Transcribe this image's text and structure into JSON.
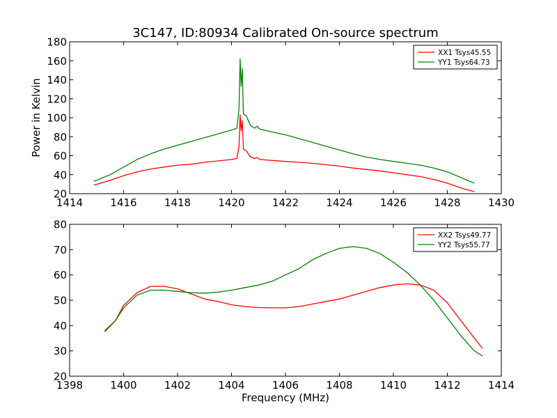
{
  "figure": {
    "title": "3C147, ID:80934 Calibrated On-source spectrum",
    "xlabel": "Frequency (MHz)",
    "ylabel": "Power in Kelvin"
  },
  "chart_data": [
    {
      "type": "line",
      "xlim": [
        1414,
        1430
      ],
      "ylim": [
        20,
        180
      ],
      "xticks": [
        1414,
        1416,
        1418,
        1420,
        1422,
        1424,
        1426,
        1428,
        1430
      ],
      "yticks": [
        20,
        40,
        60,
        80,
        100,
        120,
        140,
        160,
        180
      ],
      "ylabel": "Power in Kelvin",
      "grid": false,
      "legend_position": "top-right",
      "series": [
        {
          "name": "XX1 Tsys45.55",
          "color": "#ff0000",
          "points": [
            [
              1414.9,
              29
            ],
            [
              1415.5,
              34
            ],
            [
              1416.0,
              39
            ],
            [
              1416.5,
              43
            ],
            [
              1417.0,
              46
            ],
            [
              1417.5,
              48
            ],
            [
              1418.0,
              50
            ],
            [
              1418.5,
              51
            ],
            [
              1419.0,
              53
            ],
            [
              1419.5,
              54.5
            ],
            [
              1420.0,
              56
            ],
            [
              1420.2,
              57
            ],
            [
              1420.28,
              70
            ],
            [
              1420.32,
              103
            ],
            [
              1420.36,
              86
            ],
            [
              1420.4,
              97
            ],
            [
              1420.44,
              67
            ],
            [
              1420.55,
              65
            ],
            [
              1420.7,
              59
            ],
            [
              1420.85,
              57
            ],
            [
              1420.95,
              58
            ],
            [
              1421.05,
              56
            ],
            [
              1421.5,
              55
            ],
            [
              1422.0,
              54
            ],
            [
              1422.5,
              53
            ],
            [
              1423.0,
              52
            ],
            [
              1423.5,
              50.5
            ],
            [
              1424.0,
              49
            ],
            [
              1424.5,
              47
            ],
            [
              1425.0,
              45.5
            ],
            [
              1425.5,
              44
            ],
            [
              1426.0,
              42
            ],
            [
              1426.5,
              40
            ],
            [
              1427.0,
              38
            ],
            [
              1427.5,
              35
            ],
            [
              1428.0,
              31
            ],
            [
              1428.5,
              26
            ],
            [
              1429.0,
              22
            ]
          ]
        },
        {
          "name": "YY1 Tsys64.73",
          "color": "#008000",
          "points": [
            [
              1414.9,
              33
            ],
            [
              1415.5,
              40
            ],
            [
              1416.0,
              48
            ],
            [
              1416.5,
              56
            ],
            [
              1417.0,
              62
            ],
            [
              1417.5,
              67
            ],
            [
              1418.0,
              71
            ],
            [
              1418.5,
              75
            ],
            [
              1419.0,
              79
            ],
            [
              1419.5,
              83
            ],
            [
              1420.0,
              87
            ],
            [
              1420.2,
              89
            ],
            [
              1420.28,
              110
            ],
            [
              1420.32,
              162
            ],
            [
              1420.36,
              133
            ],
            [
              1420.4,
              152
            ],
            [
              1420.44,
              104
            ],
            [
              1420.55,
              102
            ],
            [
              1420.7,
              92
            ],
            [
              1420.85,
              89
            ],
            [
              1420.95,
              91
            ],
            [
              1421.05,
              88
            ],
            [
              1421.5,
              85
            ],
            [
              1422.0,
              82
            ],
            [
              1422.5,
              78
            ],
            [
              1423.0,
              74
            ],
            [
              1423.5,
              70
            ],
            [
              1424.0,
              66
            ],
            [
              1424.5,
              62
            ],
            [
              1425.0,
              58.5
            ],
            [
              1425.5,
              56
            ],
            [
              1426.0,
              54
            ],
            [
              1426.5,
              52
            ],
            [
              1427.0,
              50
            ],
            [
              1427.5,
              47
            ],
            [
              1428.0,
              43
            ],
            [
              1428.5,
              37
            ],
            [
              1429.0,
              31
            ]
          ]
        }
      ]
    },
    {
      "type": "line",
      "xlim": [
        1398,
        1414
      ],
      "ylim": [
        20,
        80
      ],
      "xticks": [
        1398,
        1400,
        1402,
        1404,
        1406,
        1408,
        1410,
        1412,
        1414
      ],
      "yticks": [
        20,
        30,
        40,
        50,
        60,
        70,
        80
      ],
      "xlabel": "Frequency (MHz)",
      "grid": false,
      "legend_position": "top-right",
      "series": [
        {
          "name": "XX2 Tsys49.77",
          "color": "#ff0000",
          "points": [
            [
              1399.3,
              38
            ],
            [
              1399.7,
              42
            ],
            [
              1400.0,
              48
            ],
            [
              1400.5,
              53
            ],
            [
              1401.0,
              55.5
            ],
            [
              1401.5,
              55.5
            ],
            [
              1402.0,
              54.5
            ],
            [
              1402.5,
              52.5
            ],
            [
              1403.0,
              50.5
            ],
            [
              1403.5,
              49.5
            ],
            [
              1404.0,
              48.2
            ],
            [
              1404.5,
              47.5
            ],
            [
              1405.0,
              47.1
            ],
            [
              1405.5,
              47
            ],
            [
              1406.0,
              47
            ],
            [
              1406.5,
              47.5
            ],
            [
              1407.0,
              48.5
            ],
            [
              1407.5,
              49.5
            ],
            [
              1408.0,
              50.5
            ],
            [
              1408.5,
              52
            ],
            [
              1409.0,
              53.5
            ],
            [
              1409.5,
              55
            ],
            [
              1410.0,
              56
            ],
            [
              1410.5,
              56.5
            ],
            [
              1411.0,
              56
            ],
            [
              1411.5,
              54
            ],
            [
              1412.0,
              49
            ],
            [
              1412.5,
              42
            ],
            [
              1413.0,
              35
            ],
            [
              1413.3,
              31
            ]
          ]
        },
        {
          "name": "YY2 Tsys55.77",
          "color": "#008000",
          "points": [
            [
              1399.3,
              37.5
            ],
            [
              1399.7,
              42
            ],
            [
              1400.0,
              47
            ],
            [
              1400.5,
              52
            ],
            [
              1401.0,
              54
            ],
            [
              1401.5,
              54
            ],
            [
              1402.0,
              53.5
            ],
            [
              1402.5,
              53
            ],
            [
              1403.0,
              52.8
            ],
            [
              1403.5,
              53.2
            ],
            [
              1404.0,
              54
            ],
            [
              1404.5,
              55
            ],
            [
              1405.0,
              56
            ],
            [
              1405.5,
              57.5
            ],
            [
              1406.0,
              60
            ],
            [
              1406.5,
              62.5
            ],
            [
              1407.0,
              66
            ],
            [
              1407.5,
              68.5
            ],
            [
              1408.0,
              70.5
            ],
            [
              1408.5,
              71.2
            ],
            [
              1409.0,
              70.5
            ],
            [
              1409.5,
              68.5
            ],
            [
              1410.0,
              65
            ],
            [
              1410.5,
              61
            ],
            [
              1411.0,
              56
            ],
            [
              1411.5,
              50
            ],
            [
              1412.0,
              43
            ],
            [
              1412.5,
              36
            ],
            [
              1413.0,
              30
            ],
            [
              1413.3,
              28
            ]
          ]
        }
      ]
    }
  ]
}
